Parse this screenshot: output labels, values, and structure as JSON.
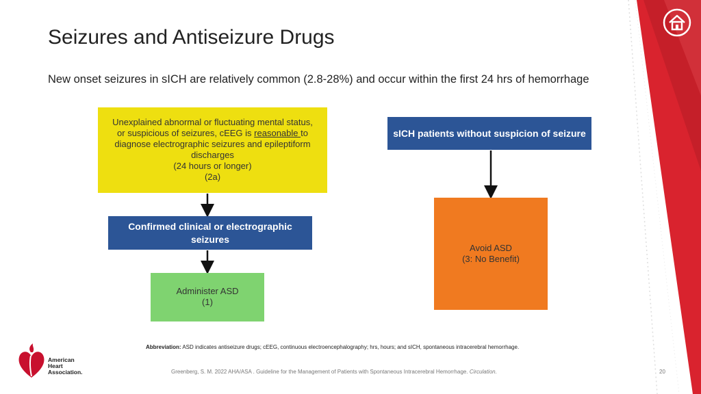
{
  "slide": {
    "title": "Seizures and Antiseizure Drugs",
    "subtitle": "New onset seizures in sICH are relatively common (2.8-28%) and occur within the first 24 hrs of hemorrhage"
  },
  "flowchart": {
    "yellow_box": {
      "line1": "Unexplained abnormal or fluctuating mental status,",
      "line2_pre": "or suspicious of seizures, cEEG is ",
      "line2_underlined": "reasonable ",
      "line2_post": "to",
      "line3": "diagnose electrographic seizures and epileptiform",
      "line4": "discharges",
      "line5": "(24 hours or longer)",
      "line6": "(2a)"
    },
    "confirmed_box": {
      "line1": "Confirmed  clinical or electrographic",
      "line2": "seizures"
    },
    "administer_box": {
      "line1": "Administer ASD",
      "line2": "(1)"
    },
    "no_suspicion_box": {
      "text": "sICH patients without suspicion of seizure"
    },
    "avoid_box": {
      "line1": "Avoid ASD",
      "line2": "(3: No Benefit)"
    }
  },
  "footnote": {
    "label": "Abbreviation:",
    "text": " ASD indicates antiseizure drugs; cEEG, continuous electroencephalography; hrs, hours; and sICH, spontaneous intracerebral hemorrhage."
  },
  "citation": {
    "text": "Greenberg, S. M. 2022 AHA/ASA . Guideline for the Management of Patients with Spontaneous Intracerebral Hemorrhage. ",
    "journal": "Circulation."
  },
  "page_number": "20",
  "logo": {
    "line1": "American",
    "line2": "Heart",
    "line3": "Association."
  },
  "colors": {
    "yellow": "#eedf10",
    "blue": "#2c5596",
    "green": "#7fd370",
    "orange": "#f07a20",
    "red": "#d9232e"
  },
  "icons": {
    "home": "home-icon",
    "logo": "heart-torch-logo"
  }
}
